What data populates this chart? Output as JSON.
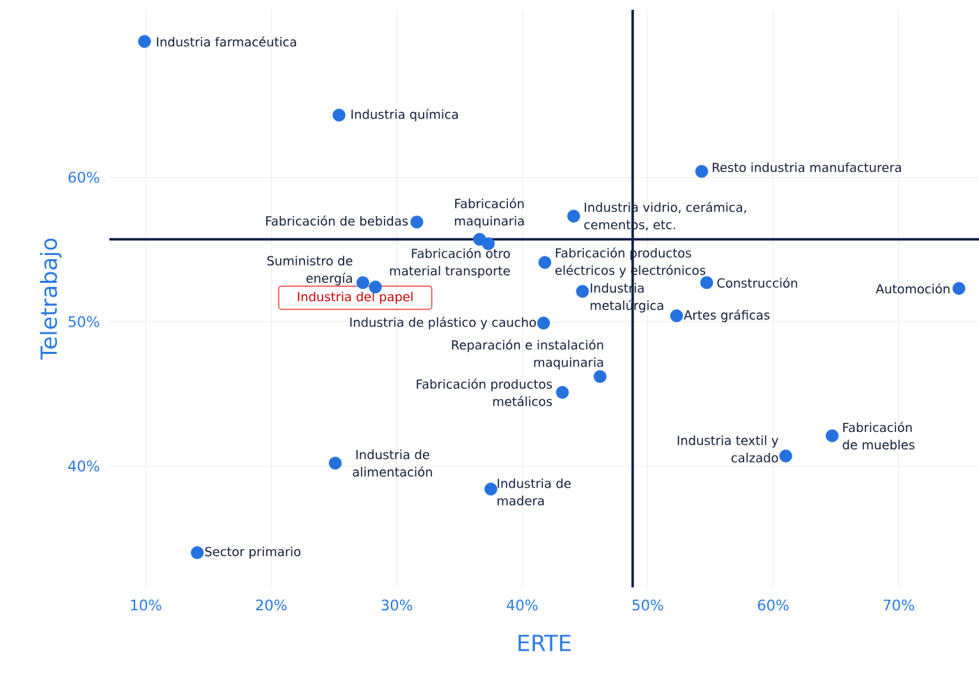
{
  "chart_data": {
    "type": "scatter",
    "xlabel": "ERTE",
    "ylabel": "Teletrabajo",
    "xlim": [
      7.1,
      76.4
    ],
    "ylim": [
      31.6,
      71.6
    ],
    "xticks": [
      {
        "value": 10,
        "label": "10%"
      },
      {
        "value": 20,
        "label": "20%"
      },
      {
        "value": 30,
        "label": "30%"
      },
      {
        "value": 40,
        "label": "40%"
      },
      {
        "value": 50,
        "label": "50%"
      },
      {
        "value": 60,
        "label": "60%"
      },
      {
        "value": 70,
        "label": "70%"
      }
    ],
    "yticks": [
      {
        "value": 40,
        "label": "40%"
      },
      {
        "value": 50,
        "label": "50%"
      },
      {
        "value": 60,
        "label": "60%"
      }
    ],
    "grid": true,
    "marker": "circle",
    "series": [
      {
        "color": "#2572de",
        "x": [
          9.9,
          25.4,
          54.3,
          31.6,
          44.1,
          36.6,
          37.3,
          41.8,
          27.3,
          28.3,
          54.7,
          74.8,
          44.8,
          52.3,
          41.7,
          46.2,
          43.2,
          64.7,
          61.0,
          25.1,
          37.5,
          14.1
        ],
        "values": [
          69.4,
          64.3,
          60.4,
          56.9,
          57.3,
          55.7,
          55.4,
          54.1,
          52.7,
          52.4,
          52.7,
          52.3,
          52.1,
          50.4,
          49.9,
          46.2,
          45.1,
          42.1,
          40.7,
          40.2,
          38.4,
          34.0
        ]
      }
    ],
    "ref_lines": [
      {
        "axis": "x",
        "value": 48.8,
        "color": "#0b1d45"
      },
      {
        "axis": "y",
        "value": 55.7,
        "color": "#0b1d45"
      }
    ],
    "annotations": [
      {
        "text": "Industria farmacéutica",
        "x": 9.9,
        "y": 69.4
      },
      {
        "text": "Industria química",
        "x": 25.4,
        "y": 64.3
      },
      {
        "text": "Resto industria manufacturera",
        "x": 54.3,
        "y": 60.4
      },
      {
        "text": "Fabricación de bebidas",
        "x": 31.6,
        "y": 56.9
      },
      {
        "text": "Industria vidrio, cerámica, cementos, etc.",
        "x": 44.1,
        "y": 57.3
      },
      {
        "text": "Fabricación maquinaria",
        "x": 36.6,
        "y": 55.7
      },
      {
        "text": "Fabricación otro material transporte",
        "x": 37.3,
        "y": 55.4
      },
      {
        "text": "Fabricación productos eléctricos y electrónicos",
        "x": 41.8,
        "y": 54.1
      },
      {
        "text": "Suministro de energía",
        "x": 27.3,
        "y": 52.7
      },
      {
        "text": "Industria del papel",
        "x": 28.3,
        "y": 52.4
      },
      {
        "text": "Construcción",
        "x": 54.7,
        "y": 52.7
      },
      {
        "text": "Automoción",
        "x": 74.8,
        "y": 52.3
      },
      {
        "text": "Industria metalúrgica",
        "x": 44.8,
        "y": 52.1
      },
      {
        "text": "Artes gráficas",
        "x": 52.3,
        "y": 50.4
      },
      {
        "text": "Industria de plástico y caucho",
        "x": 41.7,
        "y": 49.9
      },
      {
        "text": "Reparación e instalación maquinaria",
        "x": 46.2,
        "y": 46.2
      },
      {
        "text": "Fabricación productos metálicos",
        "x": 43.2,
        "y": 45.1
      },
      {
        "text": "Fabricación de muebles",
        "x": 64.7,
        "y": 42.1
      },
      {
        "text": "Industria textil y calzado",
        "x": 61.0,
        "y": 40.7
      },
      {
        "text": "Industria de alimentación",
        "x": 25.1,
        "y": 40.2
      },
      {
        "text": "Industria de madera",
        "x": 37.5,
        "y": 38.4
      },
      {
        "text": "Sector primario",
        "x": 14.1,
        "y": 34.0
      }
    ]
  }
}
